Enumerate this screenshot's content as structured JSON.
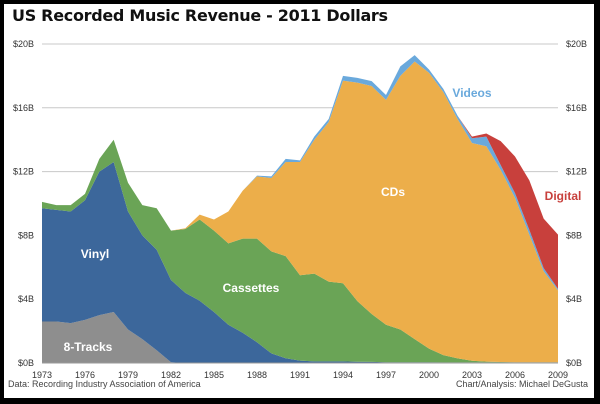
{
  "chart_data": {
    "type": "area",
    "stacked": true,
    "title": "US Recorded Music Revenue - 2011 Dollars",
    "source": "Data: Recording Industry Association of America",
    "credit": "Chart/Analysis: Michael DeGusta",
    "ylim": [
      0,
      20
    ],
    "yticks": [
      "$0B",
      "$4B",
      "$8B",
      "$12B",
      "$16B",
      "$20B"
    ],
    "ytick_values": [
      0,
      4,
      8,
      12,
      16,
      20
    ],
    "xticks": [
      "1973",
      "1976",
      "1979",
      "1982",
      "1985",
      "1988",
      "1991",
      "1994",
      "1997",
      "2000",
      "2003",
      "2006",
      "2009"
    ],
    "grid": true,
    "x": [
      1973,
      1974,
      1975,
      1976,
      1977,
      1978,
      1979,
      1980,
      1981,
      1982,
      1983,
      1984,
      1985,
      1986,
      1987,
      1988,
      1989,
      1990,
      1991,
      1992,
      1993,
      1994,
      1995,
      1996,
      1997,
      1998,
      1999,
      2000,
      2001,
      2002,
      2003,
      2004,
      2005,
      2006,
      2007,
      2008,
      2009
    ],
    "series": [
      {
        "name": "8-Tracks",
        "color": "#8e8e8e",
        "values": [
          2.6,
          2.6,
          2.5,
          2.7,
          3.0,
          3.2,
          2.1,
          1.5,
          0.8,
          0.05,
          0,
          0,
          0,
          0,
          0,
          0,
          0,
          0,
          0,
          0,
          0,
          0,
          0,
          0,
          0,
          0,
          0,
          0,
          0,
          0,
          0,
          0,
          0,
          0,
          0,
          0,
          0
        ]
      },
      {
        "name": "Vinyl",
        "color": "#3c679b",
        "values": [
          7.1,
          7.0,
          7.0,
          7.5,
          9.0,
          9.4,
          7.4,
          6.5,
          6.3,
          5.15,
          4.4,
          3.9,
          3.2,
          2.4,
          1.9,
          1.3,
          0.6,
          0.3,
          0.15,
          0.1,
          0.1,
          0.1,
          0.08,
          0.07,
          0.05,
          0.05,
          0.05,
          0.05,
          0.04,
          0.04,
          0.04,
          0.04,
          0.04,
          0.04,
          0.04,
          0.04,
          0.04
        ]
      },
      {
        "name": "Cassettes",
        "color": "#6aa456",
        "values": [
          0.4,
          0.3,
          0.4,
          0.4,
          0.8,
          1.4,
          1.8,
          1.9,
          2.6,
          3.1,
          4.0,
          5.1,
          5.1,
          5.1,
          5.9,
          6.5,
          6.4,
          6.4,
          5.35,
          5.5,
          5.0,
          4.9,
          3.8,
          3.0,
          2.35,
          2.05,
          1.45,
          0.85,
          0.45,
          0.25,
          0.1,
          0.05,
          0.02,
          0.01,
          0.01,
          0.01,
          0.01
        ]
      },
      {
        "name": "CDs",
        "color": "#ecae4a",
        "values": [
          0,
          0,
          0,
          0,
          0,
          0,
          0,
          0,
          0,
          0,
          0.05,
          0.3,
          0.7,
          2.0,
          3.0,
          3.9,
          4.6,
          5.9,
          7.1,
          8.4,
          10.0,
          12.7,
          13.7,
          14.3,
          14.1,
          15.9,
          17.4,
          17.3,
          16.5,
          15.0,
          13.65,
          13.5,
          12.05,
          10.3,
          8.0,
          5.7,
          4.5
        ]
      },
      {
        "name": "Videos",
        "color": "#6aa9dc",
        "values": [
          0,
          0,
          0,
          0,
          0,
          0,
          0,
          0,
          0,
          0,
          0,
          0,
          0,
          0,
          0,
          0.05,
          0.1,
          0.2,
          0.1,
          0.2,
          0.2,
          0.3,
          0.3,
          0.3,
          0.3,
          0.6,
          0.4,
          0.2,
          0.2,
          0.2,
          0.3,
          0.6,
          0.3,
          0.3,
          0.3,
          0.2,
          0.1
        ]
      },
      {
        "name": "Digital",
        "color": "#c8403c",
        "values": [
          0,
          0,
          0,
          0,
          0,
          0,
          0,
          0,
          0,
          0,
          0,
          0,
          0,
          0,
          0,
          0,
          0,
          0,
          0,
          0,
          0,
          0,
          0,
          0,
          0,
          0,
          0,
          0,
          0,
          0,
          0.1,
          0.2,
          1.5,
          2.3,
          3.1,
          3.1,
          3.4
        ]
      }
    ]
  }
}
